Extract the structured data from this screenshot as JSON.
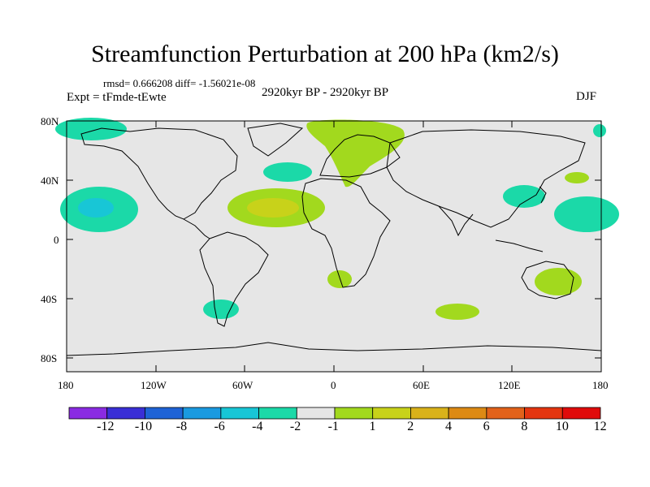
{
  "title": "Streamfunction Perturbation at 200 hPa (km2/s)",
  "stats_line": "rmsd= 0.666208 diff= -1.56021e-08",
  "expt_line": "Expt = tFmde-tEwte",
  "period_line": "2920kyr BP - 2920kyr BP",
  "season": "DJF",
  "lat_labels": [
    "80N",
    "40N",
    "0",
    "40S",
    "80S"
  ],
  "lon_labels": [
    "180",
    "120W",
    "60W",
    "0",
    "60E",
    "120E",
    "180"
  ],
  "colorbar": {
    "colors": [
      "#8a2be2",
      "#3a2fd6",
      "#1f63d6",
      "#1a9ae0",
      "#18c6d6",
      "#1bd9a8",
      "#e6e6e6",
      "#a2d91e",
      "#c8d21a",
      "#d9b21a",
      "#dd8a14",
      "#e2621a",
      "#e4350f",
      "#e00b0b"
    ],
    "labels": [
      "-12",
      "-10",
      "-8",
      "-6",
      "-4",
      "-2",
      "-1",
      "1",
      "2",
      "4",
      "6",
      "8",
      "10",
      "12"
    ]
  },
  "colors": {
    "background": "#e6e6e6",
    "neg_2": "#1bd9a8",
    "neg_4": "#18c6d6",
    "pos_2": "#a2d91e",
    "pos_4": "#c8d21a",
    "coast": "#000000"
  }
}
